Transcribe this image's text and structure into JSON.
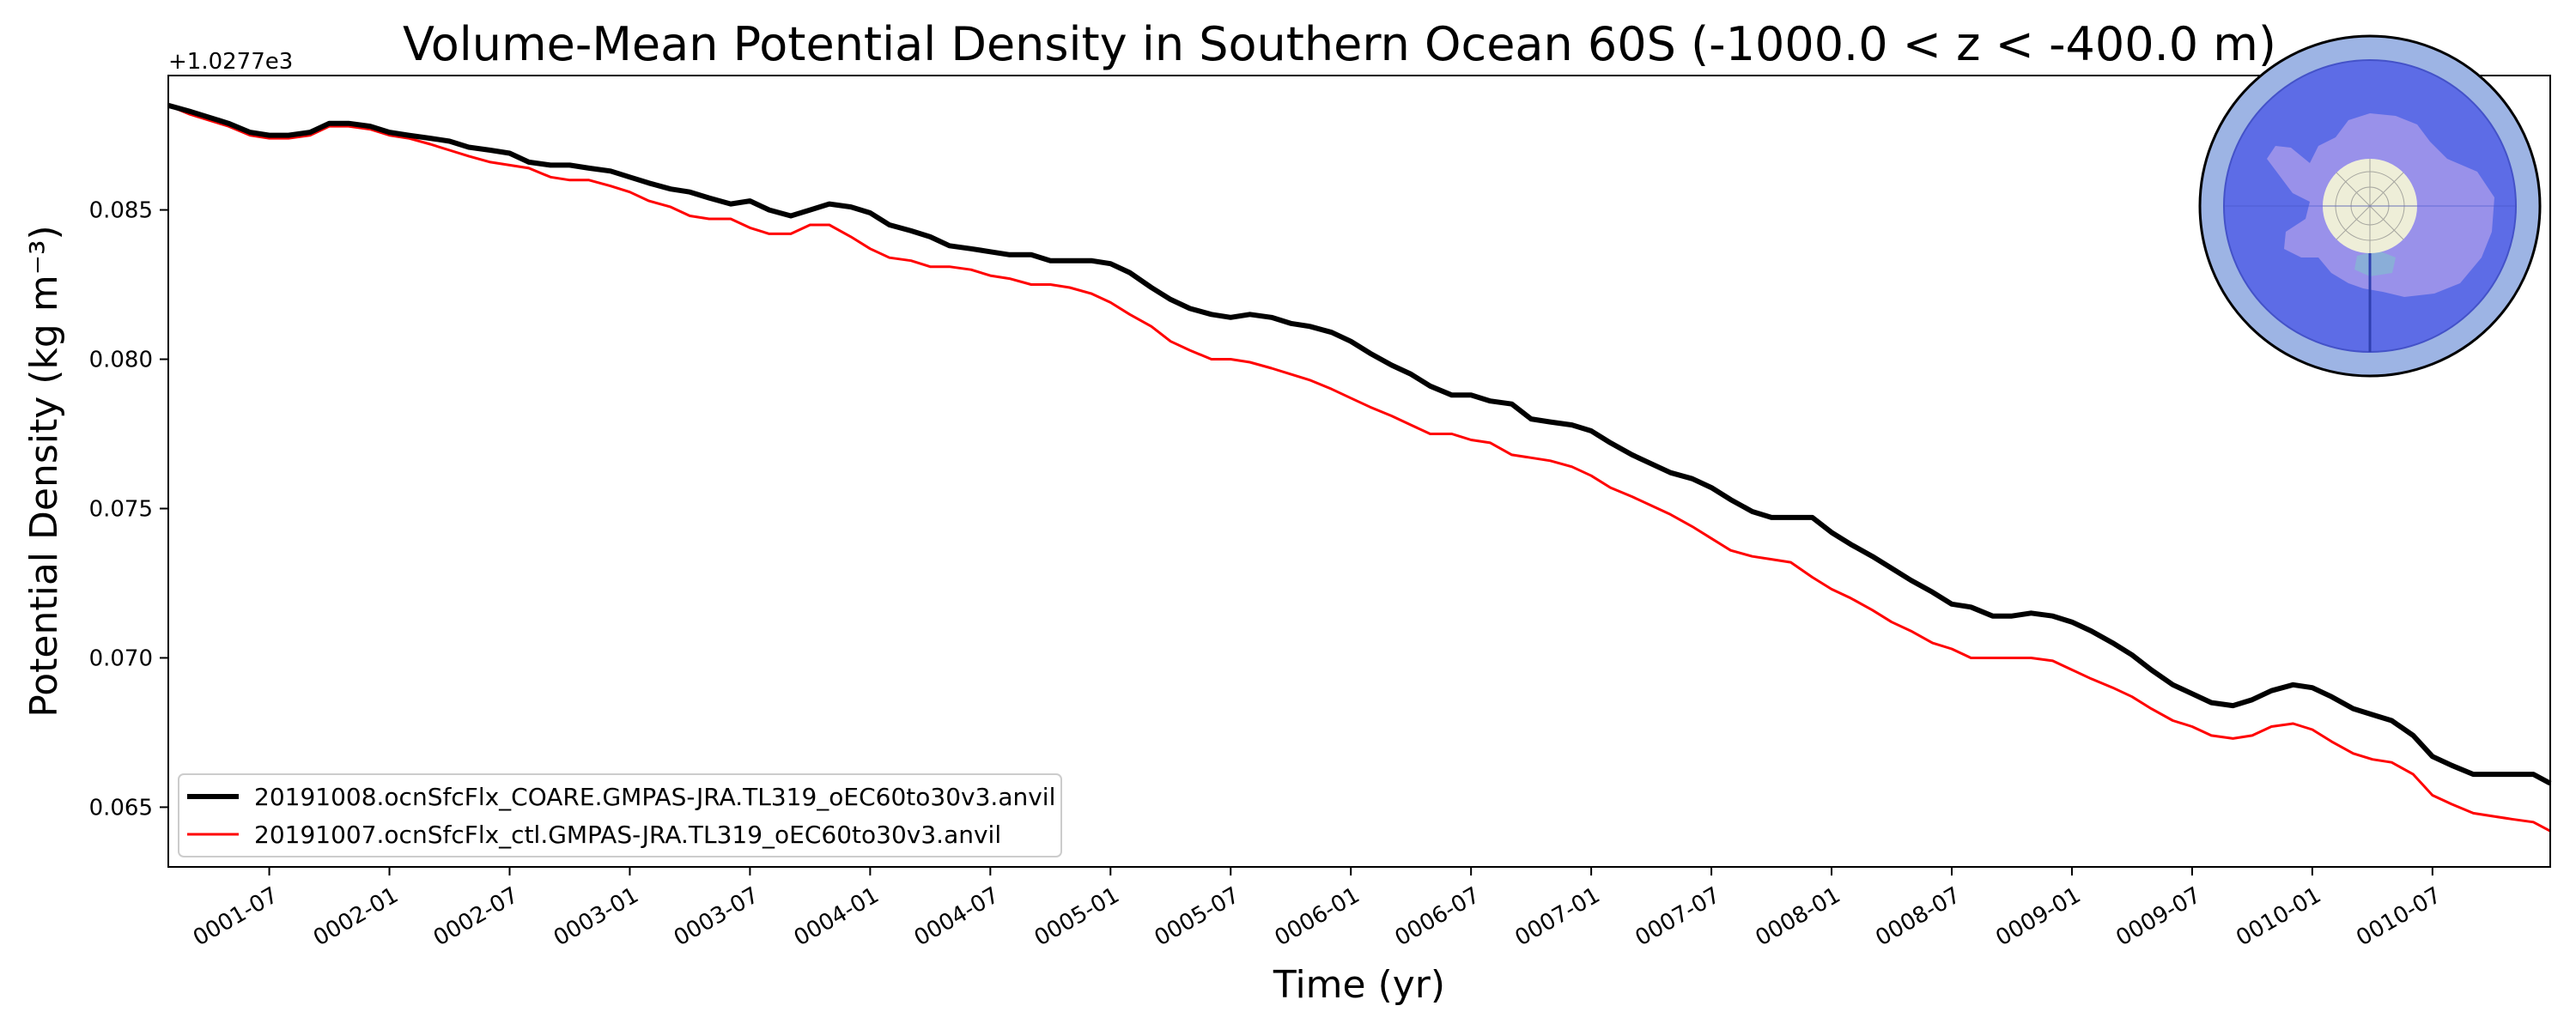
{
  "chart_data": {
    "type": "line",
    "title": "Volume-Mean Potential Density in Southern Ocean 60S (-1000.0 < z < -400.0 m)",
    "xlabel": "Time (yr)",
    "ylabel": "Potential Density (kg m⁻³)",
    "y_offset_label": "+1.0277e3",
    "x_unit": "years since 0001-01",
    "xlim": [
      0.08,
      9.99
    ],
    "ylim": [
      0.063,
      0.0895
    ],
    "xticks": [
      {
        "value": 0.5,
        "label": "0001-07"
      },
      {
        "value": 1.0,
        "label": "0002-01"
      },
      {
        "value": 1.5,
        "label": "0002-07"
      },
      {
        "value": 2.0,
        "label": "0003-01"
      },
      {
        "value": 2.5,
        "label": "0003-07"
      },
      {
        "value": 3.0,
        "label": "0004-01"
      },
      {
        "value": 3.5,
        "label": "0004-07"
      },
      {
        "value": 4.0,
        "label": "0005-01"
      },
      {
        "value": 4.5,
        "label": "0005-07"
      },
      {
        "value": 5.0,
        "label": "0006-01"
      },
      {
        "value": 5.5,
        "label": "0006-07"
      },
      {
        "value": 6.0,
        "label": "0007-01"
      },
      {
        "value": 6.5,
        "label": "0007-07"
      },
      {
        "value": 7.0,
        "label": "0008-01"
      },
      {
        "value": 7.5,
        "label": "0008-07"
      },
      {
        "value": 8.0,
        "label": "0009-01"
      },
      {
        "value": 8.5,
        "label": "0009-07"
      },
      {
        "value": 9.0,
        "label": "0010-01"
      },
      {
        "value": 9.5,
        "label": "0010-07"
      }
    ],
    "yticks": [
      {
        "value": 0.065,
        "label": "0.065"
      },
      {
        "value": 0.07,
        "label": "0.070"
      },
      {
        "value": 0.075,
        "label": "0.075"
      },
      {
        "value": 0.08,
        "label": "0.080"
      },
      {
        "value": 0.085,
        "label": "0.085"
      }
    ],
    "legend_position": "lower-left",
    "series": [
      {
        "name": "20191008.ocnSfcFlx_COARE.GMPAS-JRA.TL319_oEC60to30v3.anvil",
        "color": "#000000",
        "width": "thick",
        "x": [
          0.08,
          0.17,
          0.25,
          0.33,
          0.42,
          0.5,
          0.58,
          0.67,
          0.75,
          0.83,
          0.92,
          1.0,
          1.08,
          1.17,
          1.25,
          1.33,
          1.42,
          1.5,
          1.58,
          1.67,
          1.75,
          1.83,
          1.92,
          2.0,
          2.08,
          2.17,
          2.25,
          2.33,
          2.42,
          2.5,
          2.58,
          2.67,
          2.75,
          2.83,
          2.92,
          3.0,
          3.08,
          3.17,
          3.25,
          3.33,
          3.42,
          3.5,
          3.58,
          3.67,
          3.75,
          3.83,
          3.92,
          4.0,
          4.08,
          4.17,
          4.25,
          4.33,
          4.42,
          4.5,
          4.58,
          4.67,
          4.75,
          4.83,
          4.92,
          5.0,
          5.08,
          5.17,
          5.25,
          5.33,
          5.42,
          5.5,
          5.58,
          5.67,
          5.75,
          5.83,
          5.92,
          6.0,
          6.08,
          6.17,
          6.25,
          6.33,
          6.42,
          6.5,
          6.58,
          6.67,
          6.75,
          6.83,
          6.92,
          7.0,
          7.08,
          7.17,
          7.25,
          7.33,
          7.42,
          7.5,
          7.58,
          7.67,
          7.75,
          7.83,
          7.92,
          8.0,
          8.08,
          8.17,
          8.25,
          8.33,
          8.42,
          8.5,
          8.58,
          8.67,
          8.75,
          8.83,
          8.92,
          9.0,
          9.08,
          9.17,
          9.25,
          9.33,
          9.42,
          9.5,
          9.58,
          9.67,
          9.75,
          9.83,
          9.92,
          9.99
        ],
        "y": [
          0.0885,
          0.0883,
          0.0881,
          0.0879,
          0.0876,
          0.0875,
          0.0875,
          0.0876,
          0.0879,
          0.0879,
          0.0878,
          0.0876,
          0.0875,
          0.0874,
          0.0873,
          0.0871,
          0.087,
          0.0869,
          0.0866,
          0.0865,
          0.0865,
          0.0864,
          0.0863,
          0.0861,
          0.0859,
          0.0857,
          0.0856,
          0.0854,
          0.0852,
          0.0853,
          0.085,
          0.0848,
          0.085,
          0.0852,
          0.0851,
          0.0849,
          0.0845,
          0.0843,
          0.0841,
          0.0838,
          0.0837,
          0.0836,
          0.0835,
          0.0835,
          0.0833,
          0.0833,
          0.0833,
          0.0832,
          0.0829,
          0.0824,
          0.082,
          0.0817,
          0.0815,
          0.0814,
          0.0815,
          0.0814,
          0.0812,
          0.0811,
          0.0809,
          0.0806,
          0.0802,
          0.0798,
          0.0795,
          0.0791,
          0.0788,
          0.0788,
          0.0786,
          0.0785,
          0.078,
          0.0779,
          0.0778,
          0.0776,
          0.0772,
          0.0768,
          0.0765,
          0.0762,
          0.076,
          0.0757,
          0.0753,
          0.0749,
          0.0747,
          0.0747,
          0.0747,
          0.0742,
          0.0738,
          0.0734,
          0.073,
          0.0726,
          0.0722,
          0.0718,
          0.0717,
          0.0714,
          0.0714,
          0.0715,
          0.0714,
          0.0712,
          0.0709,
          0.0705,
          0.0701,
          0.0696,
          0.0691,
          0.0688,
          0.0685,
          0.0684,
          0.0686,
          0.0689,
          0.0691,
          0.069,
          0.0687,
          0.0683,
          0.0681,
          0.0679,
          0.0674,
          0.0667,
          0.0664,
          0.0661,
          0.0661,
          0.0661,
          0.0661,
          0.0658
        ]
      },
      {
        "name": "20191007.ocnSfcFlx_ctl.GMPAS-JRA.TL319_oEC60to30v3.anvil",
        "color": "#ff0000",
        "width": "thin",
        "x": [
          0.08,
          0.17,
          0.25,
          0.33,
          0.42,
          0.5,
          0.58,
          0.67,
          0.75,
          0.83,
          0.92,
          1.0,
          1.08,
          1.17,
          1.25,
          1.33,
          1.42,
          1.5,
          1.58,
          1.67,
          1.75,
          1.83,
          1.92,
          2.0,
          2.08,
          2.17,
          2.25,
          2.33,
          2.42,
          2.5,
          2.58,
          2.67,
          2.75,
          2.83,
          2.92,
          3.0,
          3.08,
          3.17,
          3.25,
          3.33,
          3.42,
          3.5,
          3.58,
          3.67,
          3.75,
          3.83,
          3.92,
          4.0,
          4.08,
          4.17,
          4.25,
          4.33,
          4.42,
          4.5,
          4.58,
          4.67,
          4.75,
          4.83,
          4.92,
          5.0,
          5.08,
          5.17,
          5.25,
          5.33,
          5.42,
          5.5,
          5.58,
          5.67,
          5.75,
          5.83,
          5.92,
          6.0,
          6.08,
          6.17,
          6.25,
          6.33,
          6.42,
          6.5,
          6.58,
          6.67,
          6.75,
          6.83,
          6.92,
          7.0,
          7.08,
          7.17,
          7.25,
          7.33,
          7.42,
          7.5,
          7.58,
          7.67,
          7.75,
          7.83,
          7.92,
          8.0,
          8.08,
          8.17,
          8.25,
          8.33,
          8.42,
          8.5,
          8.58,
          8.67,
          8.75,
          8.83,
          8.92,
          9.0,
          9.08,
          9.17,
          9.25,
          9.33,
          9.42,
          9.5,
          9.58,
          9.67,
          9.75,
          9.83,
          9.92,
          9.99
        ],
        "y": [
          0.0885,
          0.0882,
          0.088,
          0.0878,
          0.0875,
          0.0874,
          0.0874,
          0.0875,
          0.0878,
          0.0878,
          0.0877,
          0.0875,
          0.0874,
          0.0872,
          0.087,
          0.0868,
          0.0866,
          0.0865,
          0.0864,
          0.0861,
          0.086,
          0.086,
          0.0858,
          0.0856,
          0.0853,
          0.0851,
          0.0848,
          0.0847,
          0.0847,
          0.0844,
          0.0842,
          0.0842,
          0.0845,
          0.0845,
          0.0841,
          0.0837,
          0.0834,
          0.0833,
          0.0831,
          0.0831,
          0.083,
          0.0828,
          0.0827,
          0.0825,
          0.0825,
          0.0824,
          0.0822,
          0.0819,
          0.0815,
          0.0811,
          0.0806,
          0.0803,
          0.08,
          0.08,
          0.0799,
          0.0797,
          0.0795,
          0.0793,
          0.079,
          0.0787,
          0.0784,
          0.0781,
          0.0778,
          0.0775,
          0.0775,
          0.0773,
          0.0772,
          0.0768,
          0.0767,
          0.0766,
          0.0764,
          0.0761,
          0.0757,
          0.0754,
          0.0751,
          0.0748,
          0.0744,
          0.074,
          0.0736,
          0.0734,
          0.0733,
          0.0732,
          0.0727,
          0.0723,
          0.072,
          0.0716,
          0.0712,
          0.0709,
          0.0705,
          0.0703,
          0.07,
          0.07,
          0.07,
          0.07,
          0.0699,
          0.0696,
          0.0693,
          0.069,
          0.0687,
          0.0683,
          0.0679,
          0.0677,
          0.0674,
          0.0673,
          0.0674,
          0.0677,
          0.0678,
          0.0676,
          0.0672,
          0.0668,
          0.0666,
          0.0665,
          0.0661,
          0.0654,
          0.0651,
          0.0648,
          0.0647,
          0.0646,
          0.0645,
          0.0642
        ]
      }
    ]
  },
  "inset_map": {
    "description_icon": "south-polar-map-icon",
    "colors": {
      "outer_ring": "#9db4e4",
      "ocean": "#5a68e6",
      "land": "#9c94ea",
      "pole_cap": "#eeeed8",
      "shelf": "#8aaed8"
    }
  }
}
